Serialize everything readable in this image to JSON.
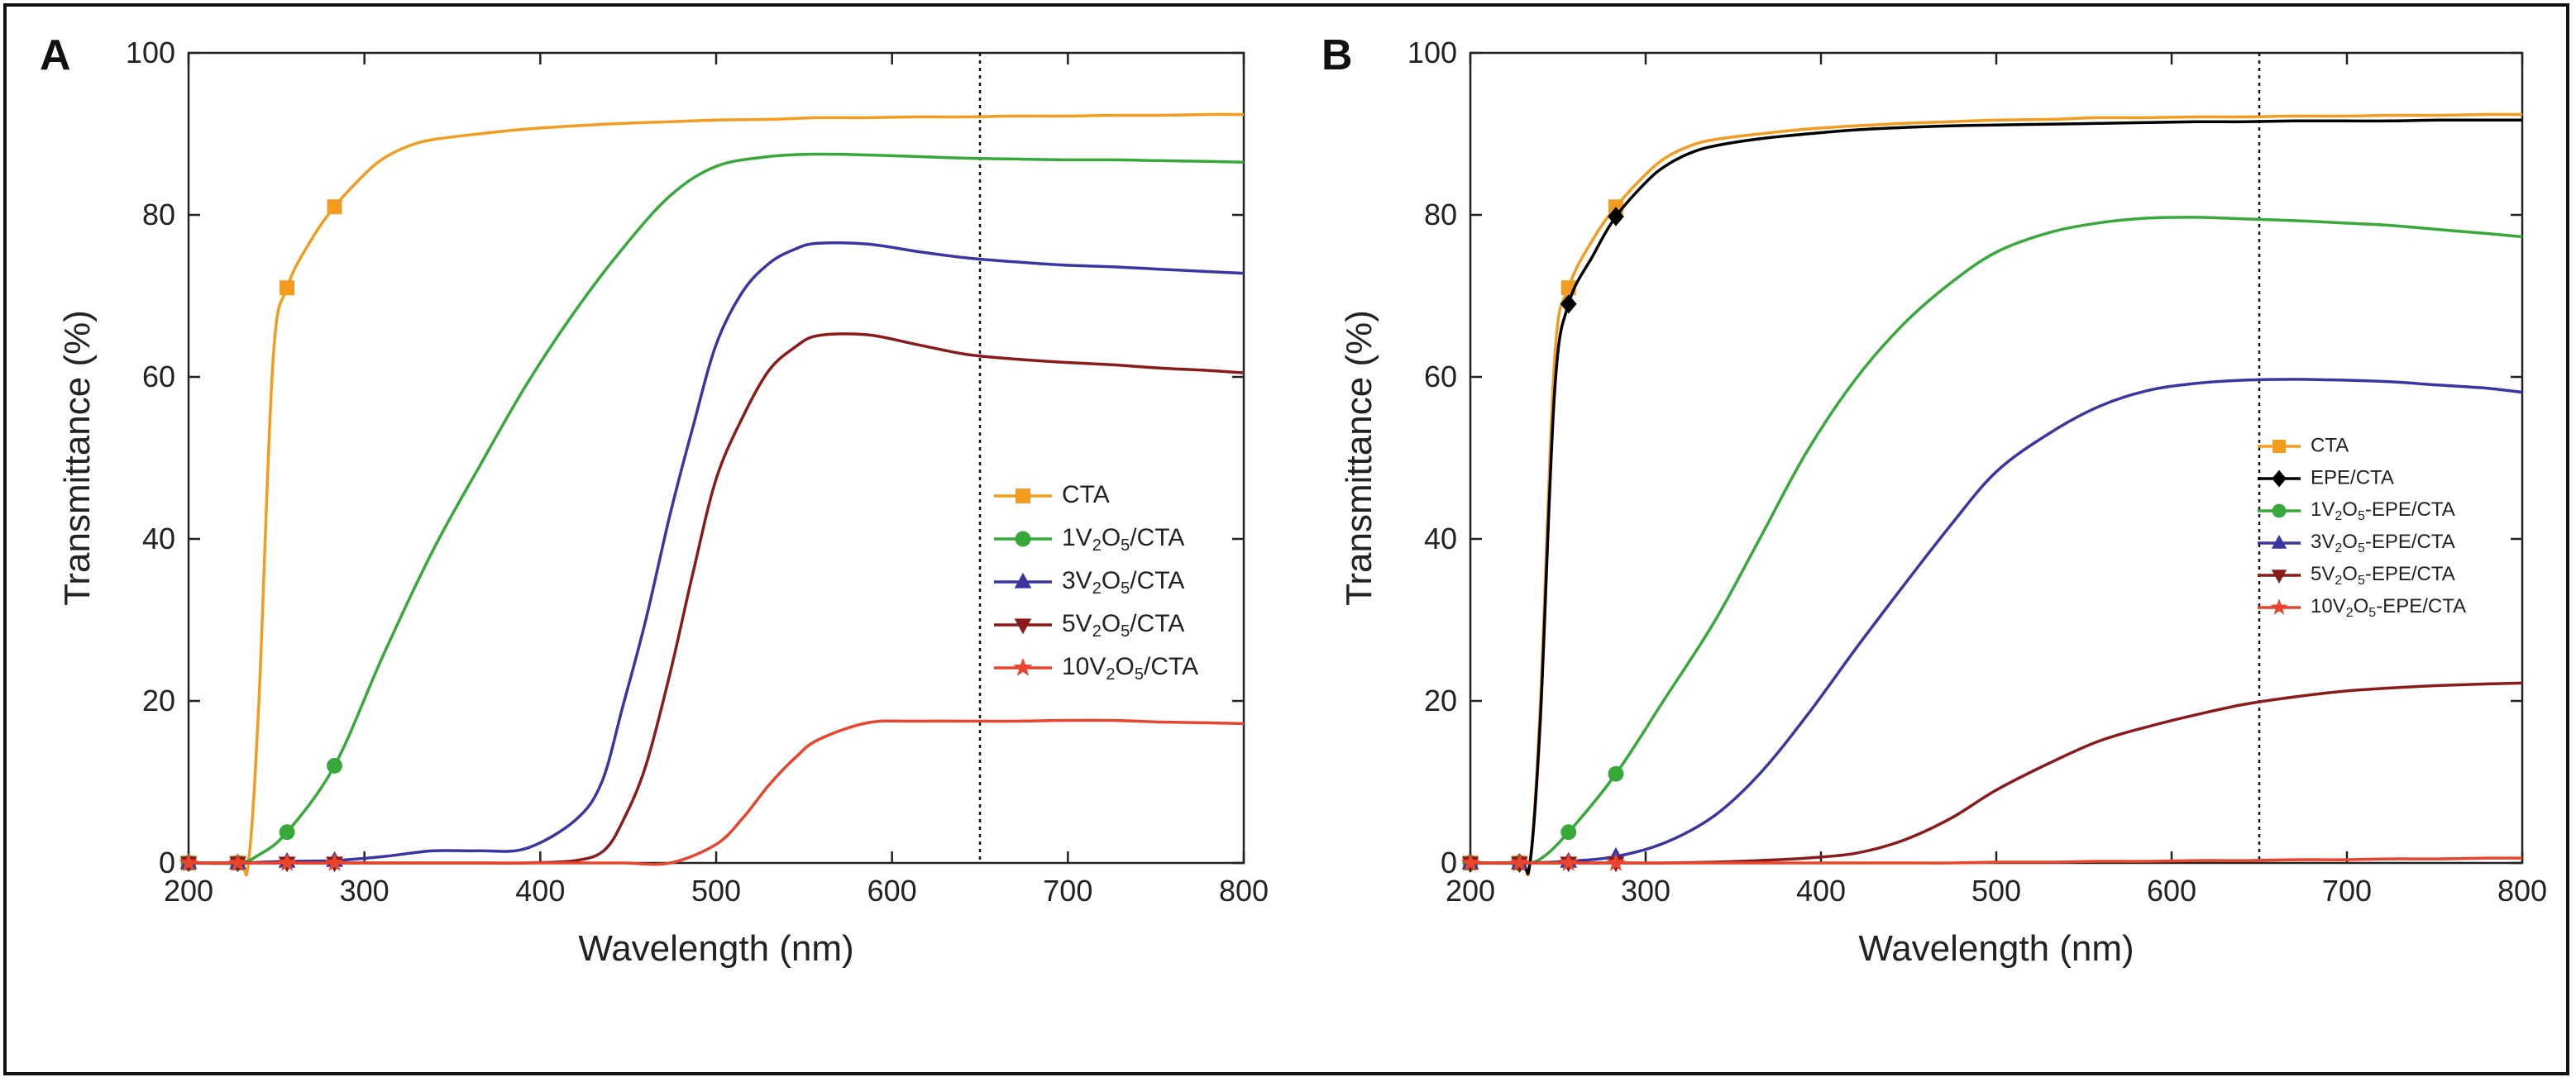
{
  "chart_data": [
    {
      "type": "line",
      "panel_label": "A",
      "xlabel": "Wavelength (nm)",
      "ylabel": "Transmittance (%)",
      "xlim": [
        200,
        800
      ],
      "ylim": [
        0,
        100
      ],
      "xticks": [
        200,
        300,
        400,
        500,
        600,
        700,
        800
      ],
      "yticks": [
        0,
        20,
        40,
        60,
        80,
        100
      ],
      "vline_x": 650,
      "legend_position": "right",
      "series": [
        {
          "name": "CTA",
          "color": "#f39c1f",
          "marker": "square",
          "x": [
            200,
            228,
            234,
            240,
            248,
            256,
            270,
            283,
            300,
            311,
            325,
            339,
            365,
            392,
            420,
            447,
            474,
            500,
            530,
            558,
            586,
            614,
            642,
            670,
            698,
            725,
            752,
            780,
            800
          ],
          "y": [
            0,
            0,
            0,
            20,
            62,
            71,
            77,
            81,
            85,
            87,
            88.5,
            89.3,
            90,
            90.6,
            91,
            91.3,
            91.5,
            91.7,
            91.8,
            92,
            92,
            92.1,
            92.1,
            92.2,
            92.2,
            92.3,
            92.3,
            92.4,
            92.4
          ]
        },
        {
          "name": "1V2O5/CTA",
          "sub": [
            "1V",
            "2",
            "O",
            "5",
            "/CTA"
          ],
          "color": "#37a93a",
          "marker": "circle",
          "x": [
            200,
            228,
            240,
            256,
            283,
            311,
            339,
            365,
            392,
            420,
            447,
            474,
            500,
            530,
            558,
            586,
            614,
            642,
            670,
            698,
            725,
            752,
            780,
            800
          ],
          "y": [
            0,
            0,
            1,
            3.8,
            12,
            25.8,
            38.6,
            48.8,
            59,
            68.2,
            75.9,
            82.4,
            86,
            87.2,
            87.5,
            87.4,
            87.2,
            87,
            86.9,
            86.8,
            86.8,
            86.7,
            86.6,
            86.5
          ]
        },
        {
          "name": "3V2O5/CTA",
          "sub": [
            "3V",
            "2",
            "O",
            "5",
            "/CTA"
          ],
          "color": "#3a35a2",
          "marker": "triangle-up",
          "x": [
            200,
            228,
            256,
            283,
            311,
            339,
            365,
            392,
            420,
            435,
            447,
            460,
            474,
            487,
            500,
            515,
            530,
            545,
            558,
            586,
            614,
            642,
            670,
            698,
            725,
            752,
            780,
            800
          ],
          "y": [
            0,
            0,
            0.2,
            0.3,
            0.8,
            1.5,
            1.5,
            1.8,
            5.3,
            10,
            19.4,
            30,
            43.2,
            54,
            64,
            70.5,
            74,
            75.8,
            76.5,
            76.4,
            75.5,
            74.7,
            74.2,
            73.8,
            73.6,
            73.3,
            73,
            72.8
          ]
        },
        {
          "name": "5V2O5/CTA",
          "sub": [
            "5V",
            "2",
            "O",
            "5",
            "/CTA"
          ],
          "color": "#8b1a1a",
          "marker": "triangle-down",
          "x": [
            200,
            228,
            256,
            283,
            311,
            339,
            365,
            392,
            420,
            436,
            447,
            460,
            474,
            487,
            500,
            515,
            530,
            545,
            558,
            586,
            614,
            642,
            670,
            698,
            725,
            752,
            780,
            800
          ],
          "y": [
            0,
            0,
            0,
            0,
            0,
            0,
            0,
            0,
            0.3,
            1.5,
            5.2,
            12,
            23.6,
            36,
            47.4,
            55,
            60.8,
            63.7,
            65.1,
            65.2,
            64,
            62.8,
            62.2,
            61.8,
            61.5,
            61.1,
            60.8,
            60.5
          ]
        },
        {
          "name": "10V2O5/CTA",
          "sub": [
            "10V",
            "2",
            "O",
            "5",
            "/CTA"
          ],
          "color": "#e8452c",
          "marker": "star",
          "x": [
            200,
            228,
            256,
            283,
            311,
            339,
            365,
            392,
            420,
            447,
            474,
            500,
            515,
            530,
            545,
            558,
            586,
            614,
            642,
            670,
            698,
            725,
            752,
            780,
            800
          ],
          "y": [
            0,
            0,
            0,
            0,
            0,
            0,
            0,
            0,
            0,
            0,
            0,
            2.3,
            5.5,
            9.6,
            13,
            15.2,
            17.3,
            17.5,
            17.5,
            17.5,
            17.6,
            17.6,
            17.4,
            17.3,
            17.2
          ]
        }
      ]
    },
    {
      "type": "line",
      "panel_label": "B",
      "xlabel": "Wavelength (nm)",
      "ylabel": "Transmittance (%)",
      "xlim": [
        200,
        800
      ],
      "ylim": [
        0,
        100
      ],
      "xticks": [
        200,
        300,
        400,
        500,
        600,
        700,
        800
      ],
      "yticks": [
        0,
        20,
        40,
        60,
        80,
        100
      ],
      "vline_x": 650,
      "legend_position": "right",
      "series": [
        {
          "name": "CTA",
          "color": "#f39c1f",
          "marker": "square",
          "x": [
            200,
            228,
            234,
            240,
            248,
            256,
            270,
            283,
            300,
            311,
            325,
            339,
            365,
            392,
            420,
            447,
            474,
            500,
            530,
            558,
            586,
            614,
            642,
            670,
            698,
            725,
            752,
            780,
            800
          ],
          "y": [
            0,
            0,
            0,
            20,
            62,
            71,
            77,
            81,
            85,
            87,
            88.5,
            89.3,
            90,
            90.6,
            91,
            91.3,
            91.5,
            91.7,
            91.8,
            92,
            92,
            92.1,
            92.1,
            92.2,
            92.2,
            92.3,
            92.3,
            92.4,
            92.4
          ]
        },
        {
          "name": "EPE/CTA",
          "color": "#000000",
          "marker": "diamond",
          "x": [
            200,
            228,
            234,
            240,
            248,
            256,
            270,
            283,
            300,
            311,
            325,
            339,
            365,
            392,
            420,
            447,
            474,
            500,
            530,
            558,
            586,
            614,
            642,
            670,
            698,
            725,
            752,
            780,
            800
          ],
          "y": [
            0,
            0,
            0,
            18,
            58,
            69,
            75,
            79.8,
            84,
            86,
            87.6,
            88.5,
            89.4,
            90,
            90.5,
            90.8,
            91,
            91.1,
            91.2,
            91.3,
            91.4,
            91.5,
            91.5,
            91.6,
            91.6,
            91.6,
            91.7,
            91.7,
            91.7
          ]
        },
        {
          "name": "1V2O5-EPE/CTA",
          "sub": [
            "1V",
            "2",
            "O",
            "5",
            "-EPE/CTA"
          ],
          "color": "#37a93a",
          "marker": "circle",
          "x": [
            200,
            228,
            240,
            256,
            283,
            311,
            339,
            365,
            392,
            420,
            447,
            474,
            500,
            530,
            558,
            586,
            614,
            642,
            670,
            698,
            725,
            752,
            780,
            800
          ],
          "y": [
            0,
            0,
            0.5,
            3.8,
            11,
            20.3,
            29.7,
            40,
            50.8,
            59.8,
            66.5,
            71.6,
            75.4,
            77.8,
            79,
            79.6,
            79.7,
            79.5,
            79.3,
            79,
            78.7,
            78.2,
            77.7,
            77.3
          ]
        },
        {
          "name": "3V2O5-EPE/CTA",
          "sub": [
            "3V",
            "2",
            "O",
            "5",
            "-EPE/CTA"
          ],
          "color": "#3a35a2",
          "marker": "triangle-up",
          "x": [
            200,
            228,
            256,
            283,
            311,
            339,
            365,
            392,
            420,
            447,
            474,
            500,
            530,
            558,
            586,
            614,
            642,
            670,
            698,
            725,
            752,
            780,
            800
          ],
          "y": [
            0,
            0,
            0.2,
            0.8,
            2.5,
            5.8,
            11,
            18.2,
            26.5,
            34.2,
            41.7,
            48.3,
            53,
            56.3,
            58.3,
            59.2,
            59.6,
            59.7,
            59.6,
            59.4,
            59,
            58.6,
            58.1
          ]
        },
        {
          "name": "5V2O5-EPE/CTA",
          "sub": [
            "5V",
            "2",
            "O",
            "5",
            "-EPE/CTA"
          ],
          "color": "#8b1a1a",
          "marker": "triangle-down",
          "x": [
            200,
            228,
            256,
            283,
            311,
            339,
            365,
            392,
            420,
            447,
            474,
            500,
            530,
            558,
            586,
            614,
            642,
            670,
            698,
            725,
            752,
            780,
            800
          ],
          "y": [
            0,
            0,
            0,
            0,
            0,
            0.1,
            0.3,
            0.6,
            1.2,
            2.8,
            5.5,
            9,
            12.3,
            15,
            16.8,
            18.3,
            19.6,
            20.5,
            21.2,
            21.6,
            21.9,
            22.1,
            22.2
          ]
        },
        {
          "name": "10V2O5-EPE/CTA",
          "sub": [
            "10V",
            "2",
            "O",
            "5",
            "-EPE/CTA"
          ],
          "color": "#e8452c",
          "marker": "star",
          "x": [
            200,
            228,
            256,
            283,
            311,
            339,
            365,
            392,
            420,
            447,
            474,
            500,
            530,
            558,
            586,
            614,
            642,
            670,
            698,
            725,
            752,
            780,
            800
          ],
          "y": [
            0,
            0,
            0,
            0,
            0,
            0,
            0,
            0,
            0,
            0,
            0,
            0.1,
            0.1,
            0.2,
            0.2,
            0.3,
            0.3,
            0.4,
            0.4,
            0.5,
            0.5,
            0.6,
            0.6
          ]
        }
      ]
    }
  ]
}
